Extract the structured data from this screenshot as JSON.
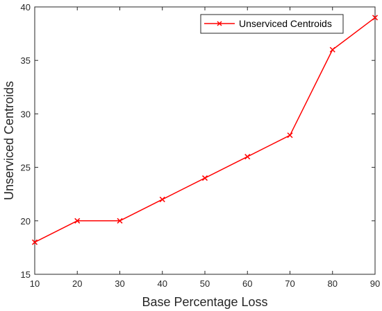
{
  "chart_data": {
    "type": "line",
    "xlabel": "Base Percentage Loss",
    "ylabel": "Unserviced Centroids",
    "xlim": [
      10,
      90
    ],
    "ylim": [
      15,
      40
    ],
    "xticks": [
      10,
      20,
      30,
      40,
      50,
      60,
      70,
      80,
      90
    ],
    "yticks": [
      15,
      20,
      25,
      30,
      35,
      40
    ],
    "grid": false,
    "legend_position": "top-right",
    "series": [
      {
        "name": "Unserviced Centroids",
        "color": "#ff0000",
        "marker": "x",
        "x": [
          10,
          20,
          30,
          40,
          50,
          60,
          70,
          80,
          90
        ],
        "y": [
          18,
          20,
          20,
          22,
          24,
          26,
          28,
          36,
          39
        ]
      }
    ]
  }
}
